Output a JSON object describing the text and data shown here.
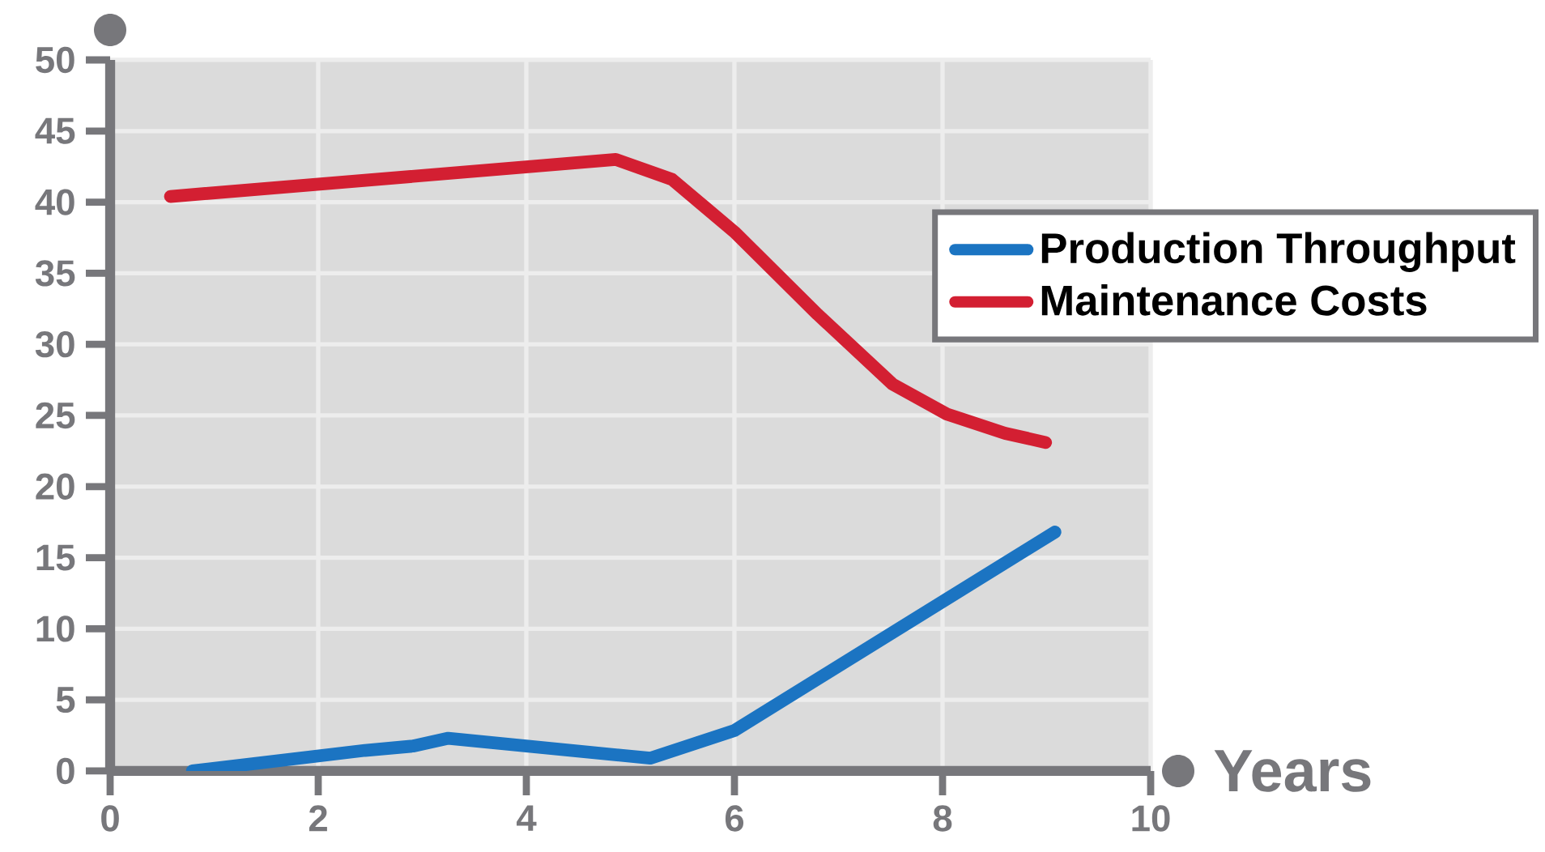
{
  "chart_data": {
    "type": "line",
    "xlabel": "Years",
    "xlim": [
      0,
      10
    ],
    "xticks": [
      0,
      2,
      4,
      6,
      8,
      10
    ],
    "ylim": [
      0,
      50
    ],
    "yticks": [
      0,
      5,
      10,
      15,
      20,
      25,
      30,
      35,
      40,
      45,
      50
    ],
    "grid": true,
    "legend": "right",
    "marker": "none",
    "line_style": "solid",
    "series": [
      {
        "name": "Production Throughput",
        "color": "#1b74c2",
        "x": [
          0.79,
          2.45,
          2.91,
          3.25,
          5.19,
          6.0,
          9.08
        ],
        "values": [
          0,
          1.45,
          1.75,
          2.3,
          0.9,
          2.85,
          16.8
        ]
      },
      {
        "name": "Maintenance Costs",
        "color": "#d31f32",
        "x": [
          0.58,
          4.86,
          5.4,
          6.0,
          6.8,
          7.52,
          8.04,
          8.6,
          8.99
        ],
        "values": [
          40.4,
          43.0,
          41.6,
          37.9,
          32.1,
          27.2,
          25.1,
          23.75,
          23.1
        ]
      }
    ]
  }
}
